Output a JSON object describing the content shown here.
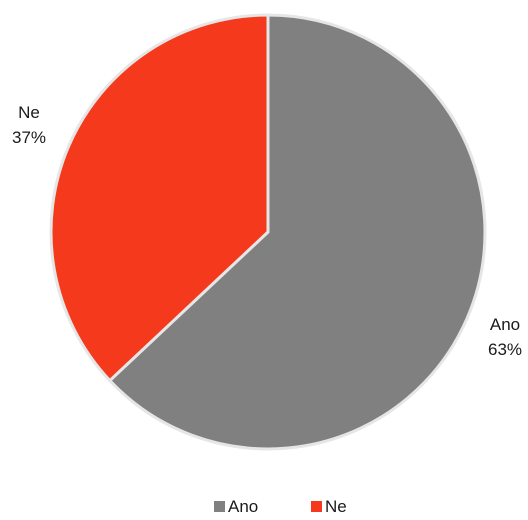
{
  "chart_data": {
    "type": "pie",
    "categories": [
      "Ano",
      "Ne"
    ],
    "values": [
      63,
      37
    ],
    "value_labels": [
      "63%",
      "37%"
    ],
    "colors": [
      "#808080",
      "#F5391C"
    ],
    "slice_border_color": "#E6E6E6",
    "legend": {
      "placement": "bottom",
      "entries": [
        "Ano",
        "Ne"
      ]
    },
    "title": ""
  }
}
